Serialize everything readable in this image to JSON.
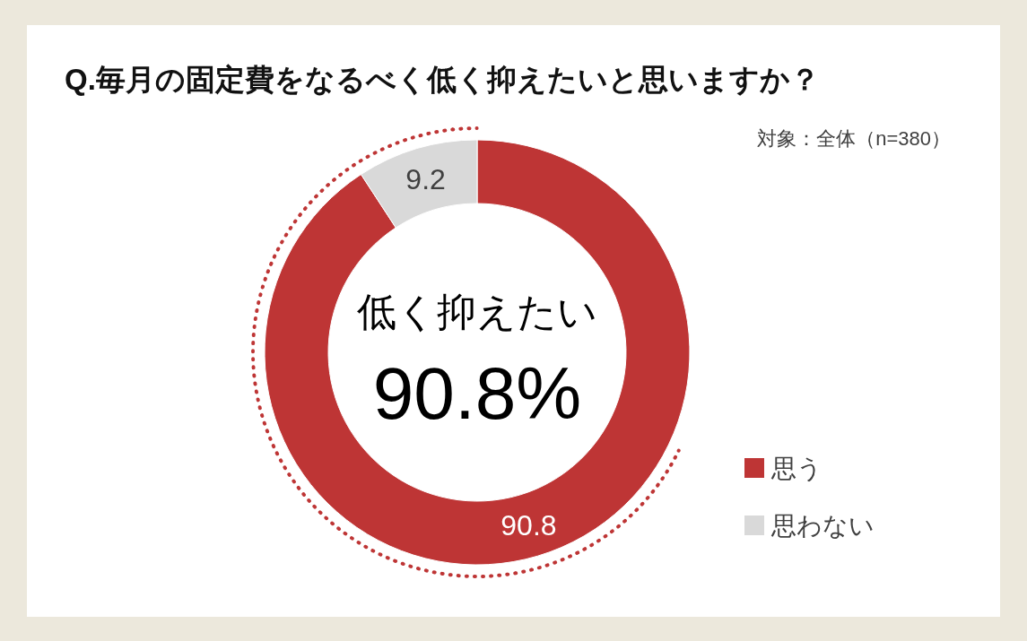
{
  "chart_data": {
    "type": "donut",
    "title": "Q.毎月の固定費をなるべく低く抑えたいと思いますか？",
    "subtitle": "対象：全体（n=380）",
    "categories": [
      "思う",
      "思わない"
    ],
    "values": [
      90.8,
      9.2
    ],
    "colors": [
      "#be3535",
      "#d9d9d9"
    ],
    "data_labels": true,
    "legend": "bottom right",
    "annotations": [
      "低く抑えたい",
      "90.8%"
    ]
  }
}
